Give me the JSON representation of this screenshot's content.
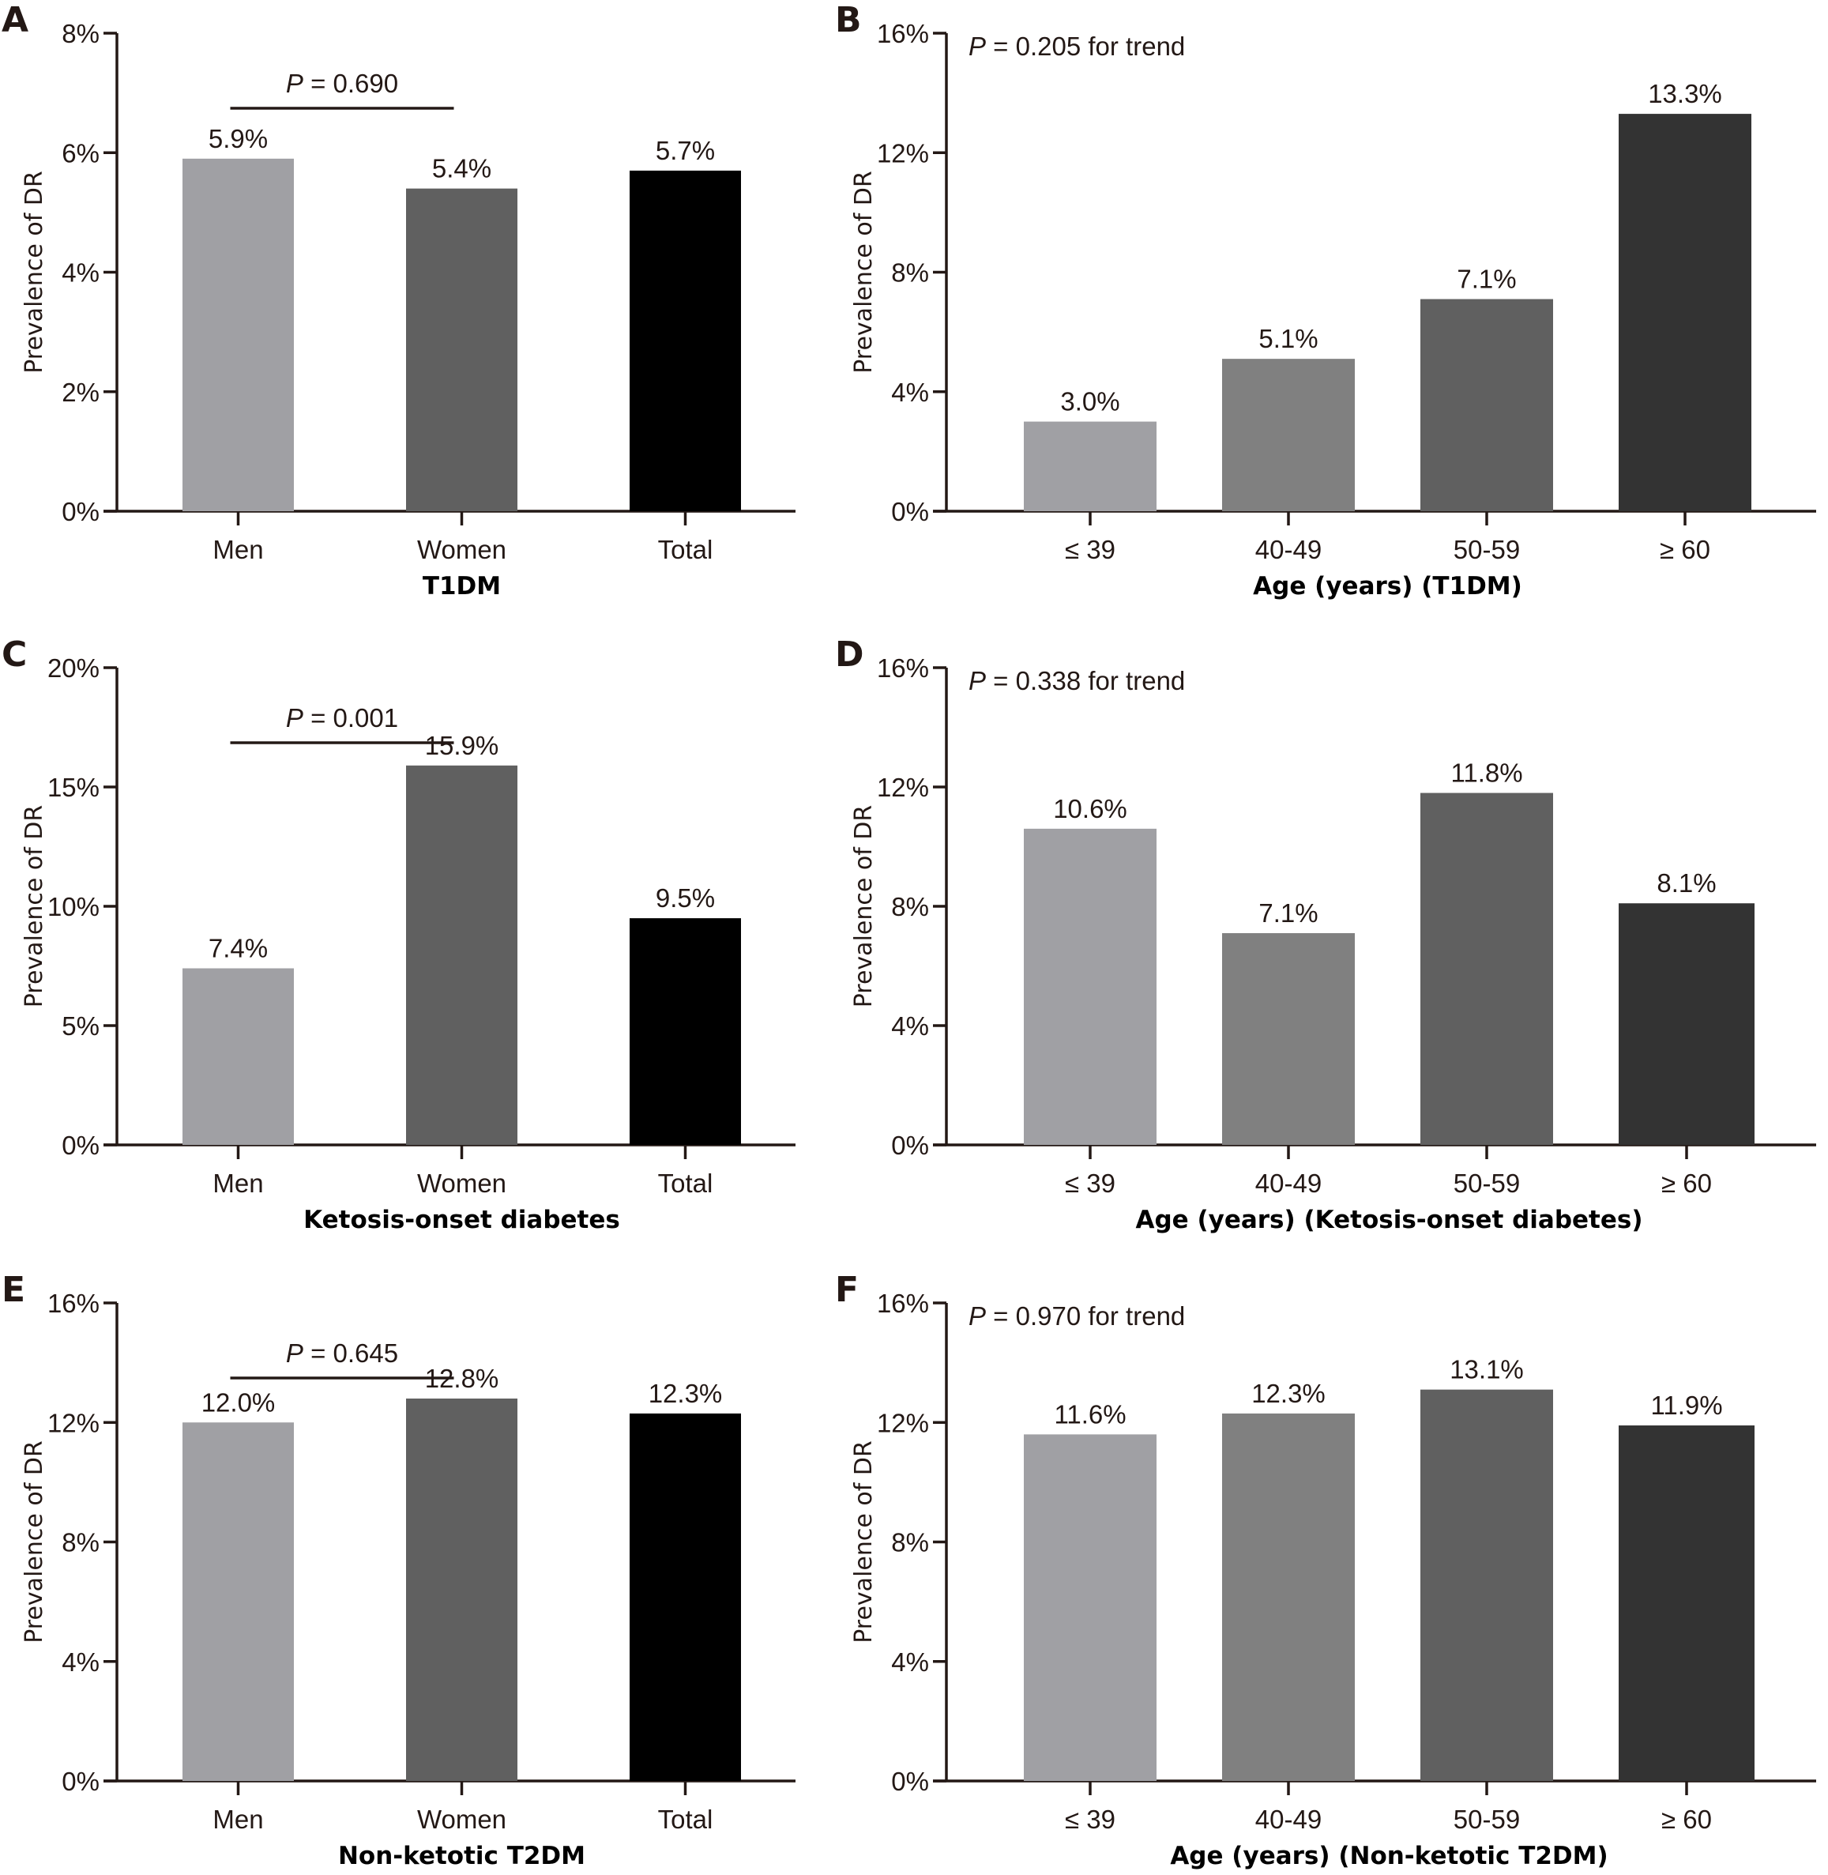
{
  "figure": {
    "panels": [
      "A",
      "B",
      "C",
      "D",
      "E",
      "F"
    ]
  },
  "chart_data": [
    {
      "panel": "A",
      "type": "bar",
      "title": "",
      "xlabel": "T1DM",
      "ylabel": "Prevalence of DR",
      "ylim": [
        0,
        8
      ],
      "yticks": [
        0,
        2,
        4,
        6,
        8
      ],
      "ytick_labels": [
        "0%",
        "2%",
        "4%",
        "6%",
        "8%"
      ],
      "categories": [
        "Men",
        "Women",
        "Total"
      ],
      "values": [
        5.9,
        5.4,
        5.7
      ],
      "value_labels": [
        "5.9%",
        "5.4%",
        "5.7%"
      ],
      "colors": [
        "#a0a0a4",
        "#606060",
        "#000000"
      ],
      "annotation": {
        "type": "bracket",
        "between": [
          "Men",
          "Women"
        ],
        "p_label": "P",
        "p_text": " = 0.690"
      },
      "grid": false
    },
    {
      "panel": "B",
      "type": "bar",
      "title": "",
      "xlabel": "Age (years) (T1DM)",
      "ylabel": "Prevalence of DR",
      "ylim": [
        0,
        16
      ],
      "yticks": [
        0,
        4,
        8,
        12,
        16
      ],
      "ytick_labels": [
        "0%",
        "4%",
        "8%",
        "12%",
        "16%"
      ],
      "categories": [
        "≤ 39",
        "40-49",
        "50-59",
        "≥ 60"
      ],
      "values": [
        3.0,
        5.1,
        7.1,
        13.3
      ],
      "value_labels": [
        "3.0%",
        "5.1%",
        "7.1%",
        "13.3%"
      ],
      "colors": [
        "#a0a0a4",
        "#808080",
        "#606060",
        "#333333"
      ],
      "annotation": {
        "type": "trend",
        "p_label": "P",
        "p_text": " = 0.205 for trend"
      },
      "grid": false
    },
    {
      "panel": "C",
      "type": "bar",
      "title": "",
      "xlabel": "Ketosis-onset diabetes",
      "ylabel": "Prevalence of DR",
      "ylim": [
        0,
        20
      ],
      "yticks": [
        0,
        5,
        10,
        15,
        20
      ],
      "ytick_labels": [
        "0%",
        "5%",
        "10%",
        "15%",
        "20%"
      ],
      "categories": [
        "Men",
        "Women",
        "Total"
      ],
      "values": [
        7.4,
        15.9,
        9.5
      ],
      "value_labels": [
        "7.4%",
        "15.9%",
        "9.5%"
      ],
      "colors": [
        "#a0a0a4",
        "#606060",
        "#000000"
      ],
      "annotation": {
        "type": "bracket",
        "between": [
          "Men",
          "Women"
        ],
        "p_label": "P",
        "p_text": " = 0.001"
      },
      "grid": false
    },
    {
      "panel": "D",
      "type": "bar",
      "title": "",
      "xlabel": "Age (years) (Ketosis-onset diabetes)",
      "ylabel": "Prevalence of DR",
      "ylim": [
        0,
        16
      ],
      "yticks": [
        0,
        4,
        8,
        12,
        16
      ],
      "ytick_labels": [
        "0%",
        "4%",
        "8%",
        "12%",
        "16%"
      ],
      "categories": [
        "≤ 39",
        "40-49",
        "50-59",
        "≥ 60"
      ],
      "values": [
        10.6,
        7.1,
        11.8,
        8.1
      ],
      "value_labels": [
        "10.6%",
        "7.1%",
        "11.8%",
        "8.1%"
      ],
      "colors": [
        "#a0a0a4",
        "#808080",
        "#606060",
        "#333333"
      ],
      "annotation": {
        "type": "trend",
        "p_label": "P",
        "p_text": " = 0.338 for trend"
      },
      "grid": false
    },
    {
      "panel": "E",
      "type": "bar",
      "title": "",
      "xlabel": "Non-ketotic T2DM",
      "ylabel": "Prevalence of DR",
      "ylim": [
        0,
        16
      ],
      "yticks": [
        0,
        4,
        8,
        12,
        16
      ],
      "ytick_labels": [
        "0%",
        "4%",
        "8%",
        "12%",
        "16%"
      ],
      "categories": [
        "Men",
        "Women",
        "Total"
      ],
      "values": [
        12.0,
        12.8,
        12.3
      ],
      "value_labels": [
        "12.0%",
        "12.8%",
        "12.3%"
      ],
      "colors": [
        "#a0a0a4",
        "#606060",
        "#000000"
      ],
      "annotation": {
        "type": "bracket",
        "between": [
          "Men",
          "Women"
        ],
        "p_label": "P",
        "p_text": " = 0.645"
      },
      "grid": false
    },
    {
      "panel": "F",
      "type": "bar",
      "title": "",
      "xlabel": "Age (years) (Non-ketotic T2DM)",
      "ylabel": "Prevalence of DR",
      "ylim": [
        0,
        16
      ],
      "yticks": [
        0,
        4,
        8,
        12,
        16
      ],
      "ytick_labels": [
        "0%",
        "4%",
        "8%",
        "12%",
        "16%"
      ],
      "categories": [
        "≤ 39",
        "40-49",
        "50-59",
        "≥ 60"
      ],
      "values": [
        11.6,
        12.3,
        13.1,
        11.9
      ],
      "value_labels": [
        "11.6%",
        "12.3%",
        "13.1%",
        "11.9%"
      ],
      "colors": [
        "#a0a0a4",
        "#808080",
        "#606060",
        "#333333"
      ],
      "annotation": {
        "type": "trend",
        "p_label": "P",
        "p_text": " = 0.970 for trend"
      },
      "grid": false
    }
  ]
}
